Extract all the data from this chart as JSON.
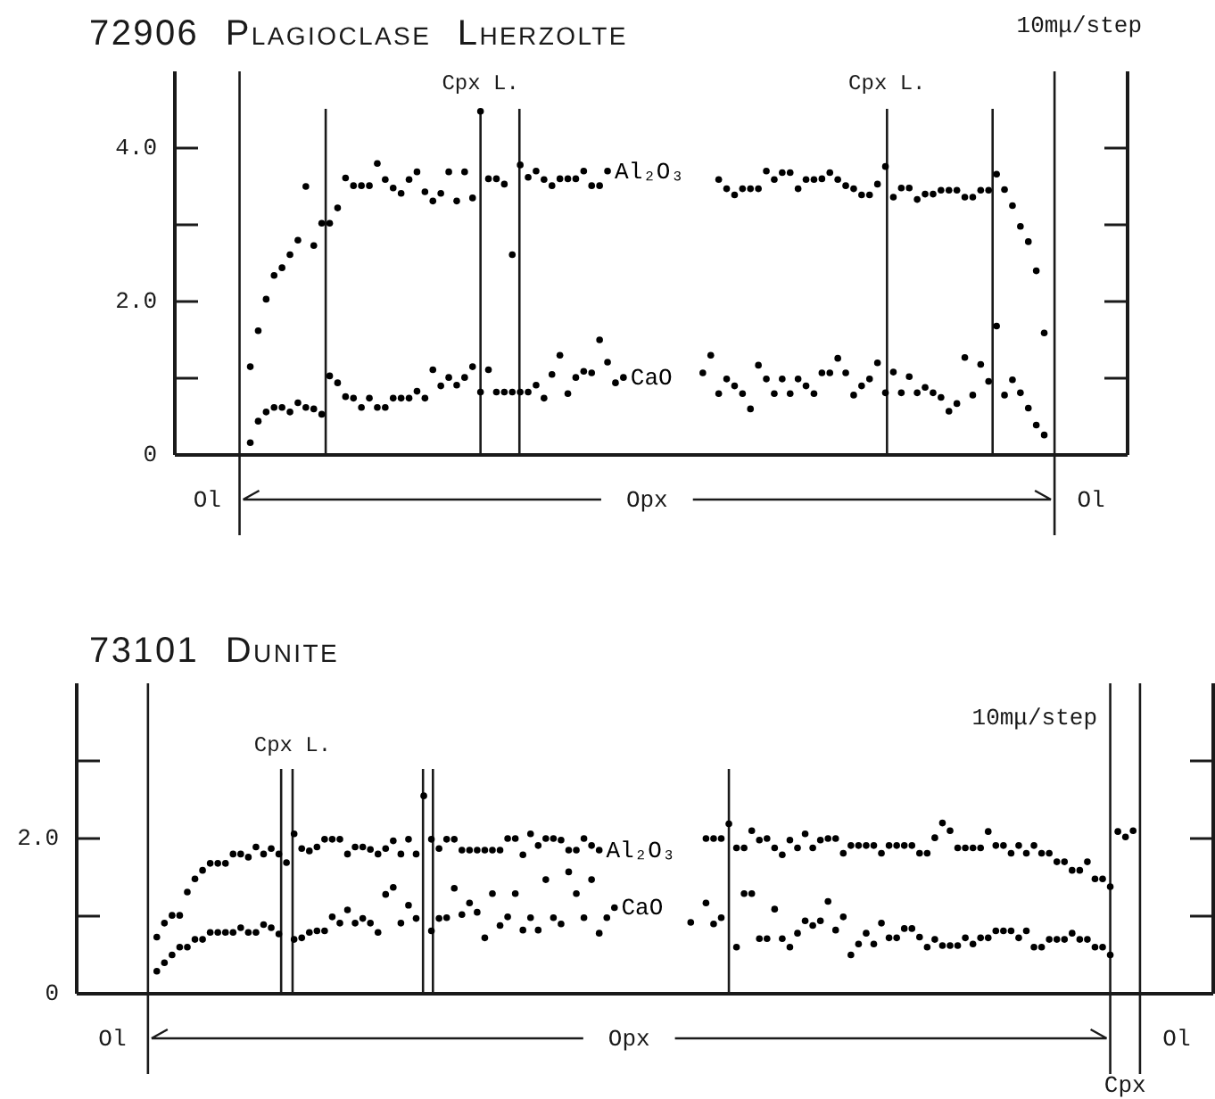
{
  "chart_data": [
    {
      "type": "scatter",
      "title": "72906 Plagioclase Lherzolte",
      "annotations": [
        "10mμ/step",
        "Cpx L.",
        "Cpx L.",
        "Ol",
        "Opx",
        "Ol"
      ],
      "categories": [
        null,
        null,
        null,
        null,
        null,
        null,
        null,
        null,
        null,
        null,
        null,
        null,
        null,
        null,
        null,
        null,
        null,
        null,
        null,
        null,
        null,
        null,
        null,
        null,
        null,
        null,
        null,
        null,
        null,
        null,
        null,
        null,
        null,
        null,
        null,
        null,
        null,
        null,
        null,
        null,
        null,
        null,
        null,
        null,
        null,
        null,
        null,
        null,
        null,
        null,
        null,
        null,
        null,
        null,
        null,
        null,
        null,
        null,
        null,
        null,
        null,
        null,
        null,
        null,
        null,
        null,
        null,
        null,
        null,
        null,
        null,
        null,
        null,
        null,
        null,
        null,
        null,
        null,
        null,
        null,
        null,
        null,
        null,
        null,
        null,
        null,
        null,
        null,
        null,
        null,
        null,
        null,
        null,
        null,
        null,
        null,
        null,
        null,
        null,
        null,
        null,
        null,
        null,
        null,
        null,
        null,
        null,
        null,
        null,
        null,
        null,
        null,
        null,
        null,
        null,
        null,
        null,
        null,
        null,
        null
      ],
      "series": [
        {
          "name": "Al₂O₃",
          "color": "#000000",
          "values": [
            null,
            null,
            null,
            null,
            null,
            null,
            null,
            null,
            null,
            1.15,
            1.62,
            2.03,
            2.34,
            2.44,
            2.61,
            2.8,
            3.5,
            2.73,
            3.02,
            3.02,
            3.22,
            3.61,
            3.51,
            3.51,
            3.51,
            3.8,
            3.59,
            3.48,
            3.41,
            3.59,
            3.69,
            3.43,
            3.31,
            3.41,
            3.69,
            3.31,
            3.69,
            3.35,
            4.48,
            3.6,
            3.6,
            3.53,
            2.61,
            3.78,
            3.62,
            3.7,
            3.59,
            3.51,
            3.6,
            3.6,
            3.6,
            3.7,
            3.51,
            3.51,
            3.7,
            null,
            null,
            null,
            null,
            null,
            null,
            null,
            null,
            null,
            null,
            null,
            null,
            null,
            3.59,
            3.47,
            3.39,
            3.47,
            3.47,
            3.47,
            3.7,
            3.59,
            3.68,
            3.68,
            3.47,
            3.59,
            3.59,
            3.6,
            3.68,
            3.59,
            3.51,
            3.47,
            3.39,
            3.39,
            3.53,
            3.76,
            3.36,
            3.48,
            3.48,
            3.33,
            3.4,
            3.4,
            3.45,
            3.45,
            3.45,
            3.36,
            3.36,
            3.45,
            3.45,
            3.66,
            3.46,
            3.25,
            2.98,
            2.78,
            2.4,
            1.59,
            null,
            null,
            null,
            null,
            null,
            null,
            null,
            null,
            null,
            null
          ]
        },
        {
          "name": "CaO",
          "color": "#000000",
          "values": [
            null,
            null,
            null,
            null,
            null,
            null,
            null,
            null,
            null,
            0.16,
            0.44,
            0.56,
            0.62,
            0.62,
            0.56,
            0.68,
            0.62,
            0.6,
            0.53,
            1.03,
            0.94,
            0.76,
            0.74,
            0.62,
            0.74,
            0.62,
            0.62,
            0.74,
            0.74,
            0.74,
            0.83,
            0.74,
            1.11,
            0.9,
            1.01,
            0.91,
            1.01,
            1.15,
            0.82,
            1.11,
            0.82,
            0.82,
            0.82,
            0.82,
            0.82,
            0.91,
            0.74,
            1.05,
            1.3,
            0.8,
            1.01,
            1.09,
            1.07,
            1.5,
            1.21,
            0.94,
            1.01,
            null,
            null,
            null,
            null,
            null,
            null,
            null,
            null,
            null,
            1.07,
            1.3,
            0.8,
            0.99,
            0.9,
            0.8,
            0.6,
            1.17,
            0.99,
            0.8,
            0.99,
            0.8,
            0.99,
            0.9,
            0.8,
            1.07,
            1.07,
            1.26,
            1.07,
            0.78,
            0.9,
            0.99,
            1.2,
            0.81,
            1.08,
            0.81,
            1.02,
            0.81,
            0.88,
            0.81,
            0.75,
            0.57,
            0.67,
            1.27,
            0.78,
            1.18,
            0.96,
            1.68,
            0.78,
            0.98,
            0.81,
            0.61,
            0.39,
            0.26,
            null,
            null,
            null,
            null,
            null,
            null,
            null,
            null,
            null,
            null
          ]
        }
      ],
      "ylim": [
        0,
        5
      ],
      "yticks": [
        0,
        {
          "value": 1,
          "label": null
        },
        {
          "value": 2,
          "label": "2.0"
        },
        {
          "value": 3,
          "label": null
        },
        {
          "value": 4,
          "label": "4.0"
        }
      ],
      "tick_labels": "y",
      "marker": "circle"
    },
    {
      "type": "scatter",
      "title": "73101 Dunite",
      "annotations": [
        "10mμ/step",
        "Cpx L.",
        "Ol",
        "Opx",
        "Cpx",
        "Ol"
      ],
      "categories": [
        null,
        null,
        null,
        null,
        null,
        null,
        null,
        null,
        null,
        null,
        null,
        null,
        null,
        null,
        null,
        null,
        null,
        null,
        null,
        null,
        null,
        null,
        null,
        null,
        null,
        null,
        null,
        null,
        null,
        null,
        null,
        null,
        null,
        null,
        null,
        null,
        null,
        null,
        null,
        null,
        null,
        null,
        null,
        null,
        null,
        null,
        null,
        null,
        null,
        null,
        null,
        null,
        null,
        null,
        null,
        null,
        null,
        null,
        null,
        null,
        null,
        null,
        null,
        null,
        null,
        null,
        null,
        null,
        null,
        null,
        null,
        null,
        null,
        null,
        null,
        null,
        null,
        null,
        null,
        null,
        null,
        null,
        null,
        null,
        null,
        null,
        null,
        null,
        null,
        null,
        null,
        null,
        null,
        null,
        null,
        null,
        null,
        null,
        null,
        null,
        null,
        null,
        null,
        null,
        null,
        null,
        null,
        null,
        null,
        null,
        null,
        null,
        null,
        null,
        null,
        null,
        null,
        null,
        null,
        null,
        null,
        null,
        null,
        null,
        null,
        null,
        null,
        null,
        null,
        null,
        null,
        null,
        null,
        null,
        null,
        null,
        null,
        null,
        null,
        null,
        null,
        null,
        null,
        null,
        null,
        null,
        null,
        null,
        null
      ],
      "series": [
        {
          "name": "Al₂O₃",
          "color": "#000000",
          "values": [
            null,
            null,
            null,
            null,
            null,
            null,
            null,
            null,
            null,
            null,
            0.73,
            0.91,
            1.01,
            1.01,
            1.31,
            1.48,
            1.59,
            1.68,
            1.68,
            1.68,
            1.8,
            1.8,
            1.76,
            1.89,
            1.8,
            1.87,
            1.8,
            1.69,
            2.06,
            1.87,
            1.84,
            1.89,
            1.99,
            1.99,
            1.99,
            1.8,
            1.89,
            1.89,
            1.86,
            1.8,
            1.87,
            1.97,
            1.8,
            1.99,
            1.8,
            2.55,
            1.99,
            1.87,
            1.99,
            1.99,
            1.85,
            1.85,
            1.85,
            1.85,
            1.85,
            1.85,
            2.0,
            2.0,
            1.79,
            2.06,
            1.91,
            2.0,
            2.0,
            1.98,
            1.85,
            1.85,
            2.0,
            1.91,
            1.85,
            null,
            null,
            null,
            null,
            null,
            null,
            null,
            null,
            null,
            null,
            null,
            null,
            null,
            2.0,
            2.0,
            2.0,
            2.19,
            1.88,
            1.88,
            2.1,
            1.98,
            2.0,
            1.88,
            1.79,
            1.98,
            1.88,
            2.06,
            1.88,
            1.98,
            2.0,
            2.0,
            1.81,
            1.91,
            1.91,
            1.91,
            1.91,
            1.81,
            1.91,
            1.91,
            1.91,
            1.91,
            1.81,
            1.81,
            2.01,
            2.2,
            2.1,
            1.88,
            1.88,
            1.88,
            1.88,
            2.09,
            1.91,
            1.91,
            1.81,
            1.91,
            1.81,
            1.91,
            1.81,
            1.81,
            1.7,
            1.7,
            1.59,
            1.59,
            1.7,
            1.48,
            1.48,
            1.38,
            2.09,
            2.02,
            2.1,
            null,
            null,
            null,
            null,
            null,
            null,
            null,
            null,
            null,
            null
          ]
        },
        {
          "name": "CaO",
          "color": "#000000",
          "values": [
            null,
            null,
            null,
            null,
            null,
            null,
            null,
            null,
            null,
            null,
            0.29,
            0.4,
            0.5,
            0.6,
            0.6,
            0.7,
            0.7,
            0.79,
            0.79,
            0.79,
            0.79,
            0.85,
            0.79,
            0.79,
            0.89,
            0.85,
            0.77,
            null,
            0.7,
            0.72,
            0.79,
            0.81,
            0.81,
            0.99,
            0.91,
            1.08,
            0.91,
            0.97,
            0.91,
            0.79,
            1.28,
            1.37,
            0.91,
            1.14,
            0.97,
            null,
            0.81,
            0.97,
            0.98,
            1.36,
            1.02,
            1.17,
            1.05,
            0.72,
            1.29,
            0.88,
            0.99,
            1.29,
            0.82,
            0.98,
            0.82,
            1.47,
            0.98,
            0.9,
            1.57,
            1.29,
            0.98,
            1.47,
            0.78,
            0.98,
            1.11,
            null,
            null,
            null,
            null,
            null,
            null,
            null,
            null,
            null,
            0.92,
            null,
            1.17,
            0.9,
            0.98,
            null,
            0.6,
            1.29,
            1.29,
            0.71,
            0.71,
            1.09,
            0.71,
            0.6,
            0.78,
            0.94,
            0.88,
            0.94,
            1.19,
            0.82,
            0.99,
            0.5,
            0.64,
            0.78,
            0.64,
            0.91,
            0.72,
            0.72,
            0.84,
            0.84,
            0.73,
            0.6,
            0.7,
            0.62,
            0.62,
            0.62,
            0.72,
            0.64,
            0.72,
            0.72,
            0.81,
            0.81,
            0.81,
            0.72,
            0.81,
            0.6,
            0.6,
            0.7,
            0.7,
            0.7,
            0.78,
            0.7,
            0.7,
            0.6,
            0.6,
            0.5,
            null,
            null,
            null,
            null,
            null,
            null,
            null,
            null,
            null,
            null,
            null,
            null,
            null
          ]
        }
      ],
      "ylim": [
        0,
        4
      ],
      "yticks": [
        0,
        {
          "value": 1,
          "label": null
        },
        {
          "value": 2,
          "label": "2.0"
        },
        {
          "value": 3,
          "label": null
        }
      ],
      "tick_labels": "y",
      "marker": "circle"
    }
  ]
}
